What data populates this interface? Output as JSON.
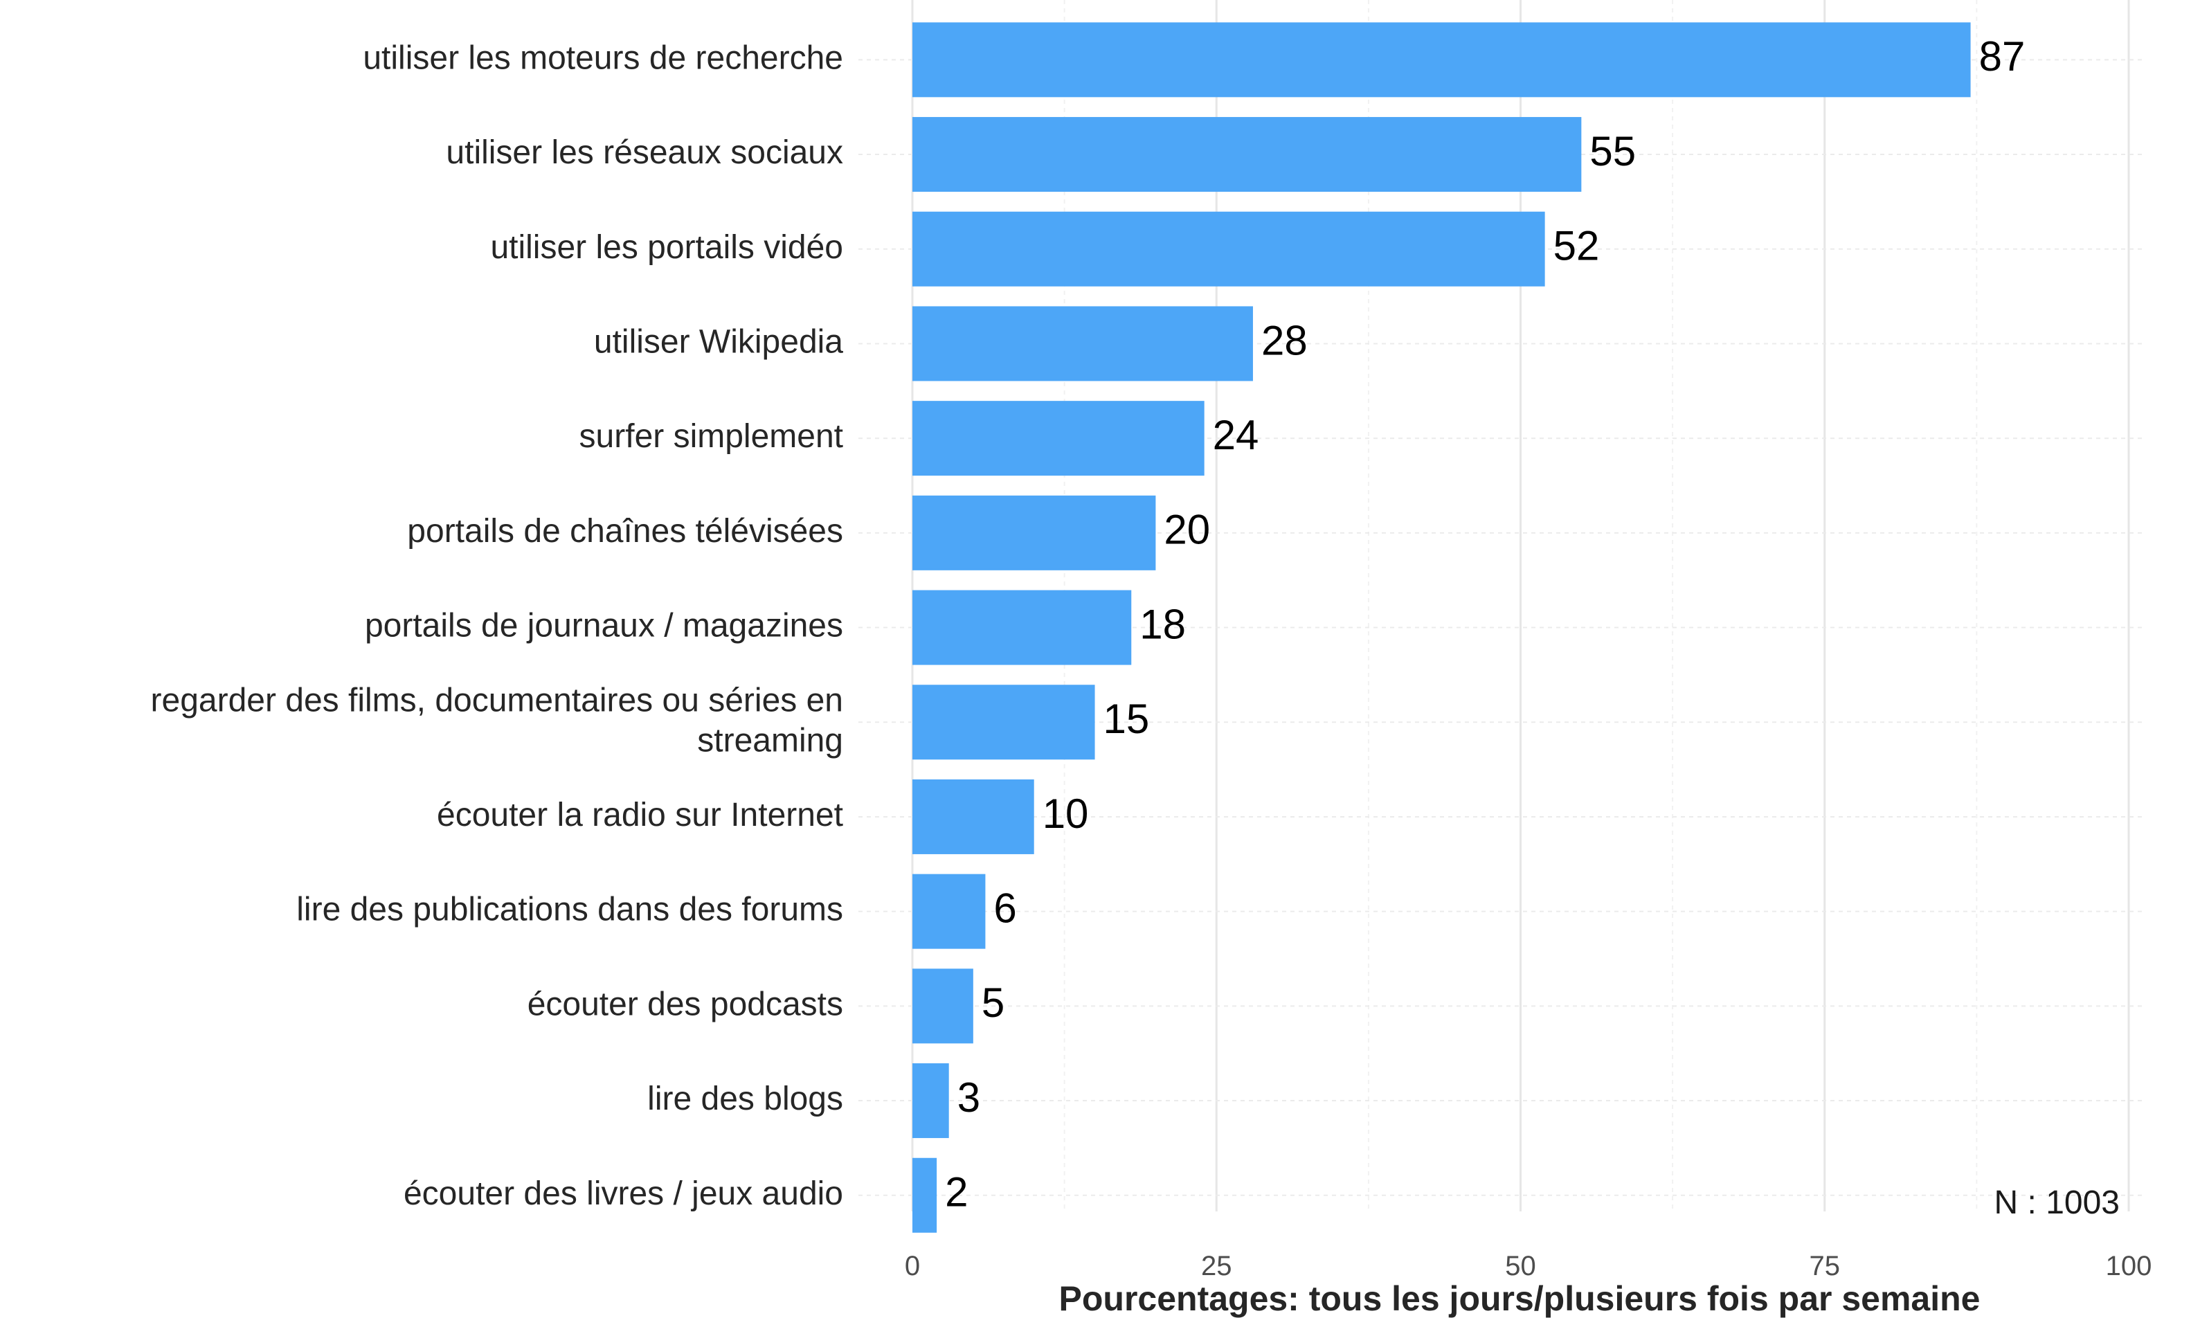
{
  "chart_data": {
    "type": "bar",
    "orientation": "horizontal",
    "categories": [
      "utiliser les moteurs de recherche",
      "utiliser les  réseaux sociaux",
      "utiliser les portails vidéo",
      "utiliser Wikipedia",
      "surfer simplement",
      "portails de chaînes télévisées",
      "portails de journaux / magazines",
      "regarder des films, documentaires ou séries en streaming",
      "écouter la radio sur Internet",
      "lire des publications dans des forums",
      "écouter des podcasts",
      "lire des blogs",
      "écouter des livres / jeux audio"
    ],
    "category_lines": [
      [
        "utiliser les moteurs de recherche"
      ],
      [
        "utiliser les  réseaux sociaux"
      ],
      [
        "utiliser les portails vidéo"
      ],
      [
        "utiliser Wikipedia"
      ],
      [
        "surfer simplement"
      ],
      [
        "portails de chaînes télévisées"
      ],
      [
        "portails de journaux / magazines"
      ],
      [
        "regarder des films, documentaires ou séries en",
        "streaming"
      ],
      [
        "écouter la radio sur Internet"
      ],
      [
        "lire des publications dans des forums"
      ],
      [
        "écouter des podcasts"
      ],
      [
        "lire des blogs"
      ],
      [
        "écouter des livres / jeux audio"
      ]
    ],
    "values": [
      87,
      55,
      52,
      28,
      24,
      20,
      18,
      15,
      10,
      6,
      5,
      3,
      2
    ],
    "xlabel": "Pourcentages: tous les jours/plusieurs fois par semaine",
    "ylabel": "",
    "xlim": [
      0,
      100
    ],
    "xticks": [
      0,
      25,
      50,
      75,
      100
    ],
    "grid": true,
    "legend": "none",
    "annotation": "N : 1003",
    "bar_color": "#4da6f7"
  }
}
